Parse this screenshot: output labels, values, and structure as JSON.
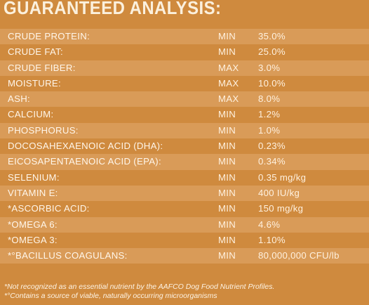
{
  "title": "GUARANTEED ANALYSIS:",
  "rows": [
    {
      "label": "CRUDE PROTEIN:",
      "qualifier": "MIN",
      "value": "35.0%"
    },
    {
      "label": "CRUDE FAT:",
      "qualifier": "MIN",
      "value": "25.0%"
    },
    {
      "label": "CRUDE FIBER:",
      "qualifier": "MAX",
      "value": "3.0%"
    },
    {
      "label": "MOISTURE:",
      "qualifier": "MAX",
      "value": "10.0%"
    },
    {
      "label": "ASH:",
      "qualifier": "MAX",
      "value": "8.0%"
    },
    {
      "label": "CALCIUM:",
      "qualifier": "MIN",
      "value": "1.2%"
    },
    {
      "label": "PHOSPHORUS:",
      "qualifier": "MIN",
      "value": "1.0%"
    },
    {
      "label": "DOCOSAHEXAENOIC ACID (DHA):",
      "qualifier": "MIN",
      "value": "0.23%"
    },
    {
      "label": "EICOSAPENTAENOIC ACID (EPA):",
      "qualifier": "MIN",
      "value": "0.34%"
    },
    {
      "label": "SELENIUM:",
      "qualifier": "MIN",
      "value": "0.35 mg/kg"
    },
    {
      "label": "VITAMIN E:",
      "qualifier": "MIN",
      "value": "400 IU/kg"
    },
    {
      "label": "*ASCORBIC ACID:",
      "qualifier": "MIN",
      "value": "150 mg/kg"
    },
    {
      "label": "*OMEGA 6:",
      "qualifier": "MIN",
      "value": "4.6%"
    },
    {
      "label": "*OMEGA 3:",
      "qualifier": "MIN",
      "value": "1.10%"
    },
    {
      "label": "*°BACILLUS COAGULANS:",
      "qualifier": "MIN",
      "value": "80,000,000 CFU/lb"
    }
  ],
  "footnotes": {
    "not_recognized": "*Not recognized as an essential nutrient by the AAFCO Dog Food Nutrient Profiles.",
    "live_microorganisms": "*°Contains a source of viable, naturally occurring microorganisms"
  },
  "colors": {
    "background": "#cf8a3e",
    "stripe": "#d99b58",
    "text": "#fdf6ec"
  }
}
